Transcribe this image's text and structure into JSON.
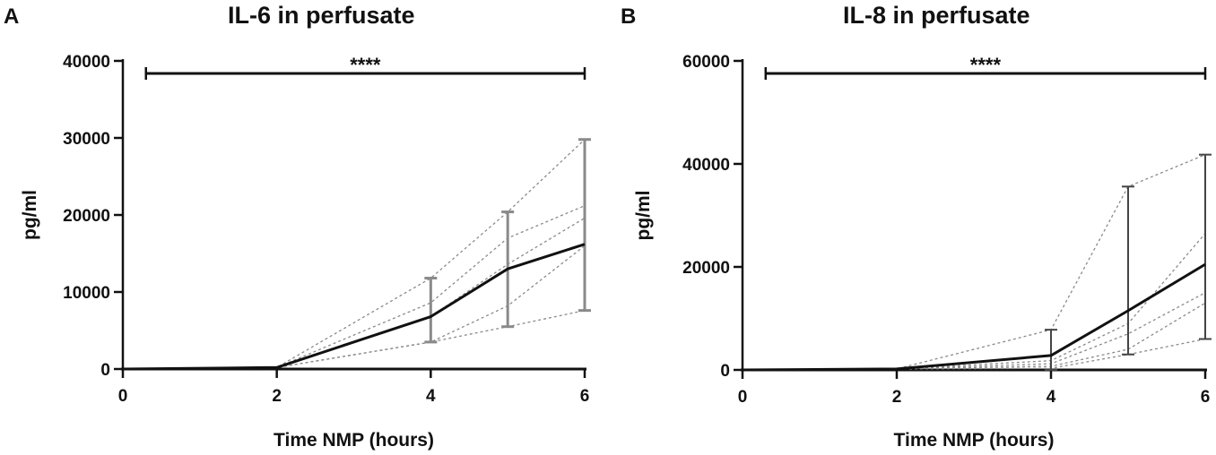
{
  "chart_data": [
    {
      "panel": "A",
      "type": "line",
      "title": "IL-6 in perfusate",
      "xlabel": "Time NMP (hours)",
      "ylabel": "pg/ml",
      "xlim": [
        0,
        6
      ],
      "ylim": [
        0,
        40000
      ],
      "xticks": [
        "0",
        "2",
        "4",
        "6"
      ],
      "yticks": [
        "0",
        "10000",
        "20000",
        "30000",
        "40000"
      ],
      "significance": "****",
      "significance_range": [
        0.3,
        6
      ],
      "mean": {
        "x": [
          0,
          2,
          4,
          5,
          6
        ],
        "y": [
          0,
          200,
          6800,
          13000,
          16200
        ],
        "error": [
          {
            "x": 4,
            "low": 3500,
            "high": 11800
          },
          {
            "x": 5,
            "low": 5500,
            "high": 20400
          },
          {
            "x": 6,
            "low": 7600,
            "high": 29800
          }
        ]
      },
      "individual_series": [
        {
          "x": [
            0,
            2,
            4,
            5,
            6
          ],
          "y": [
            0,
            200,
            11800,
            20400,
            29800
          ]
        },
        {
          "x": [
            0,
            2,
            4,
            5,
            6
          ],
          "y": [
            0,
            200,
            8600,
            17000,
            21200
          ]
        },
        {
          "x": [
            0,
            2,
            4,
            5,
            6
          ],
          "y": [
            0,
            200,
            6800,
            13600,
            19600
          ]
        },
        {
          "x": [
            0,
            2,
            4,
            5,
            6
          ],
          "y": [
            0,
            200,
            3500,
            8200,
            16000
          ]
        },
        {
          "x": [
            0,
            2,
            4,
            5,
            6
          ],
          "y": [
            0,
            200,
            3500,
            5500,
            7600
          ]
        }
      ]
    },
    {
      "panel": "B",
      "type": "line",
      "title": "IL-8 in perfusate",
      "xlabel": "Time NMP (hours)",
      "ylabel": "pg/ml",
      "xlim": [
        0,
        6
      ],
      "ylim": [
        0,
        60000
      ],
      "xticks": [
        "0",
        "2",
        "4",
        "6"
      ],
      "yticks": [
        "0",
        "20000",
        "40000",
        "60000"
      ],
      "significance": "****",
      "significance_range": [
        0.3,
        6
      ],
      "mean": {
        "x": [
          0,
          2,
          4,
          5,
          6
        ],
        "y": [
          0,
          200,
          2800,
          11500,
          20500
        ],
        "error": [
          {
            "x": 4,
            "low": 0,
            "high": 7800
          },
          {
            "x": 5,
            "low": 3000,
            "high": 35600
          },
          {
            "x": 6,
            "low": 6000,
            "high": 41800
          }
        ]
      },
      "individual_series": [
        {
          "x": [
            0,
            2,
            4,
            5,
            6
          ],
          "y": [
            0,
            200,
            7800,
            35600,
            41800
          ]
        },
        {
          "x": [
            0,
            2,
            4,
            5,
            6
          ],
          "y": [
            0,
            200,
            1800,
            9000,
            26500
          ]
        },
        {
          "x": [
            0,
            2,
            4,
            5,
            6
          ],
          "y": [
            0,
            200,
            1200,
            7000,
            15000
          ]
        },
        {
          "x": [
            0,
            2,
            4,
            5,
            6
          ],
          "y": [
            0,
            200,
            700,
            4000,
            13000
          ]
        },
        {
          "x": [
            0,
            2,
            4,
            5,
            6
          ],
          "y": [
            0,
            200,
            300,
            3000,
            6000
          ]
        }
      ]
    }
  ],
  "colors": {
    "mean_line": "#111111",
    "individual_lines": "#8a8a8a",
    "error_bar_a": "#8a8a8a",
    "error_bar_b": "#444444",
    "axes": "#111111"
  }
}
